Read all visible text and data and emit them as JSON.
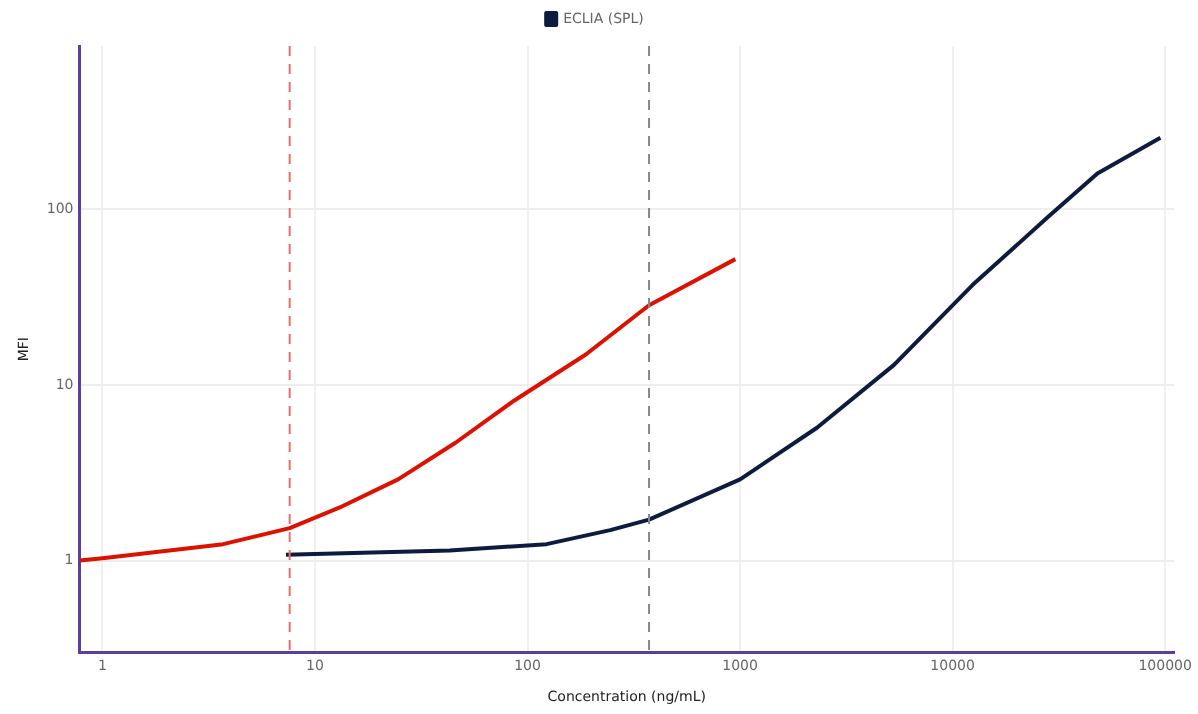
{
  "chart_data": {
    "type": "line",
    "xlabel": "Concentration (ng/mL)",
    "ylabel": "MFI",
    "log": "xy",
    "grid": true,
    "legend": "top",
    "marker": "none",
    "line_style": "solid",
    "xlim": [
      0.78,
      110000
    ],
    "xticks": [
      1,
      10,
      100,
      1000,
      10000,
      100000
    ],
    "ylim": [
      0.3,
      850
    ],
    "yticks": [
      1,
      10,
      100
    ],
    "series": [
      {
        "name": "ECLIA (SPL)",
        "color": "#0d1b3e",
        "x": [
          7.3,
          43,
          123,
          245,
          373,
          1000,
          2300,
          5300,
          12400,
          28000,
          48000,
          95000
        ],
        "values": [
          1.08,
          1.14,
          1.24,
          1.49,
          1.71,
          2.9,
          5.7,
          13,
          37,
          90,
          160,
          255
        ]
      },
      {
        "color": "#dd1100",
        "x": [
          0.78,
          1,
          3.7,
          7.6,
          13,
          24.6,
          46,
          86,
          188,
          373,
          950
        ],
        "values": [
          1.0,
          1.03,
          1.24,
          1.53,
          2.0,
          2.9,
          4.7,
          8.1,
          14.9,
          28.4,
          52
        ]
      }
    ],
    "ref_lines": [
      {
        "axis": "x",
        "value": 7.6,
        "color": "#e07070",
        "line_style": "dashed"
      },
      {
        "axis": "x",
        "value": 373,
        "color": "#808890",
        "line_style": "dashed"
      }
    ]
  }
}
